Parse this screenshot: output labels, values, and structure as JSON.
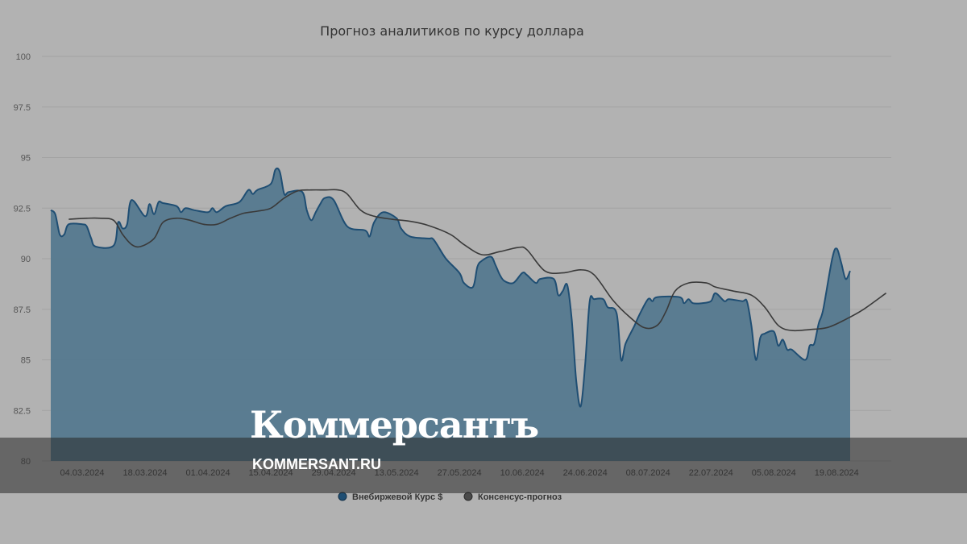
{
  "chart_data": {
    "type": "area",
    "title": "Прогноз аналитиков по курсу доллара",
    "ylim": [
      80,
      100
    ],
    "yticks": [
      "100",
      "97.5",
      "95",
      "92.5",
      "90",
      "87.5",
      "85",
      "82.5",
      "80"
    ],
    "xticks": [
      "04.03.2024",
      "18.03.2024",
      "01.04.2024",
      "15.04.2024",
      "29.04.2024",
      "13.05.2024",
      "27.05.2024",
      "10.06.2024",
      "24.06.2024",
      "08.07.2024",
      "22.07.2024",
      "05.08.2024",
      "19.08.2024"
    ],
    "xrange": [
      "2024-02-26",
      "2024-08-22"
    ],
    "grid": "horizontal",
    "legend_position": "bottom-center",
    "series": [
      {
        "name": "Внебиржевой Курс $",
        "type": "area",
        "color": "#1f4e73",
        "points": [
          [
            "2024-02-26",
            92.4
          ],
          [
            "2024-02-27",
            92.2
          ],
          [
            "2024-02-28",
            91.2
          ],
          [
            "2024-02-29",
            91.2
          ],
          [
            "2024-03-01",
            91.7
          ],
          [
            "2024-03-04",
            91.7
          ],
          [
            "2024-03-05",
            91.6
          ],
          [
            "2024-03-06",
            91.0
          ],
          [
            "2024-03-07",
            90.6
          ],
          [
            "2024-03-11",
            90.65
          ],
          [
            "2024-03-12",
            91.8
          ],
          [
            "2024-03-13",
            91.5
          ],
          [
            "2024-03-14",
            91.7
          ],
          [
            "2024-03-15",
            92.9
          ],
          [
            "2024-03-18",
            92.1
          ],
          [
            "2024-03-19",
            92.7
          ],
          [
            "2024-03-20",
            92.2
          ],
          [
            "2024-03-21",
            92.8
          ],
          [
            "2024-03-22",
            92.75
          ],
          [
            "2024-03-25",
            92.6
          ],
          [
            "2024-03-26",
            92.3
          ],
          [
            "2024-03-27",
            92.5
          ],
          [
            "2024-03-29",
            92.4
          ],
          [
            "2024-04-01",
            92.3
          ],
          [
            "2024-04-02",
            92.5
          ],
          [
            "2024-04-03",
            92.3
          ],
          [
            "2024-04-05",
            92.6
          ],
          [
            "2024-04-08",
            92.8
          ],
          [
            "2024-04-10",
            93.4
          ],
          [
            "2024-04-11",
            93.2
          ],
          [
            "2024-04-12",
            93.4
          ],
          [
            "2024-04-15",
            93.7
          ],
          [
            "2024-04-16",
            94.4
          ],
          [
            "2024-04-17",
            94.3
          ],
          [
            "2024-04-18",
            93.2
          ],
          [
            "2024-04-19",
            93.3
          ],
          [
            "2024-04-22",
            93.3
          ],
          [
            "2024-04-23",
            92.4
          ],
          [
            "2024-04-24",
            91.9
          ],
          [
            "2024-04-25",
            92.3
          ],
          [
            "2024-04-26",
            92.7
          ],
          [
            "2024-04-27",
            93.0
          ],
          [
            "2024-04-29",
            92.9
          ],
          [
            "2024-05-02",
            91.6
          ],
          [
            "2024-05-06",
            91.4
          ],
          [
            "2024-05-07",
            91.1
          ],
          [
            "2024-05-08",
            91.8
          ],
          [
            "2024-05-10",
            92.3
          ],
          [
            "2024-05-13",
            92.0
          ],
          [
            "2024-05-14",
            91.5
          ],
          [
            "2024-05-16",
            91.1
          ],
          [
            "2024-05-20",
            91.0
          ],
          [
            "2024-05-21",
            91.0
          ],
          [
            "2024-05-22",
            90.7
          ],
          [
            "2024-05-24",
            90.0
          ],
          [
            "2024-05-27",
            89.3
          ],
          [
            "2024-05-28",
            88.8
          ],
          [
            "2024-05-30",
            88.6
          ],
          [
            "2024-05-31",
            89.6
          ],
          [
            "2024-06-01",
            89.9
          ],
          [
            "2024-06-03",
            90.1
          ],
          [
            "2024-06-04",
            89.7
          ],
          [
            "2024-06-05",
            89.2
          ],
          [
            "2024-06-06",
            88.9
          ],
          [
            "2024-06-08",
            88.8
          ],
          [
            "2024-06-10",
            89.3
          ],
          [
            "2024-06-11",
            89.2
          ],
          [
            "2024-06-13",
            88.8
          ],
          [
            "2024-06-14",
            89.0
          ],
          [
            "2024-06-17",
            89.0
          ],
          [
            "2024-06-18",
            88.2
          ],
          [
            "2024-06-19",
            88.4
          ],
          [
            "2024-06-20",
            88.7
          ],
          [
            "2024-06-21",
            87.0
          ],
          [
            "2024-06-22",
            84.0
          ],
          [
            "2024-06-23",
            82.7
          ],
          [
            "2024-06-24",
            84.8
          ],
          [
            "2024-06-25",
            87.9
          ],
          [
            "2024-06-26",
            88.0
          ],
          [
            "2024-06-28",
            88.0
          ],
          [
            "2024-06-29",
            87.6
          ],
          [
            "2024-07-01",
            87.3
          ],
          [
            "2024-07-02",
            85.0
          ],
          [
            "2024-07-03",
            85.8
          ],
          [
            "2024-07-05",
            86.7
          ],
          [
            "2024-07-06",
            87.2
          ],
          [
            "2024-07-08",
            88.0
          ],
          [
            "2024-07-09",
            87.9
          ],
          [
            "2024-07-10",
            88.1
          ],
          [
            "2024-07-15",
            88.1
          ],
          [
            "2024-07-16",
            87.8
          ],
          [
            "2024-07-17",
            88.0
          ],
          [
            "2024-07-18",
            87.8
          ],
          [
            "2024-07-20",
            87.8
          ],
          [
            "2024-07-22",
            87.9
          ],
          [
            "2024-07-23",
            88.3
          ],
          [
            "2024-07-25",
            87.9
          ],
          [
            "2024-07-26",
            88.0
          ],
          [
            "2024-07-29",
            87.9
          ],
          [
            "2024-07-30",
            87.9
          ],
          [
            "2024-07-31",
            86.7
          ],
          [
            "2024-08-01",
            85.0
          ],
          [
            "2024-08-02",
            86.1
          ],
          [
            "2024-08-03",
            86.3
          ],
          [
            "2024-08-05",
            86.4
          ],
          [
            "2024-08-06",
            85.7
          ],
          [
            "2024-08-07",
            86.0
          ],
          [
            "2024-08-08",
            85.5
          ],
          [
            "2024-08-09",
            85.5
          ],
          [
            "2024-08-12",
            85.0
          ],
          [
            "2024-08-13",
            85.7
          ],
          [
            "2024-08-14",
            85.8
          ],
          [
            "2024-08-15",
            86.8
          ],
          [
            "2024-08-16",
            87.5
          ],
          [
            "2024-08-18",
            90.0
          ],
          [
            "2024-08-19",
            90.5
          ],
          [
            "2024-08-20",
            89.8
          ],
          [
            "2024-08-21",
            89.0
          ],
          [
            "2024-08-22",
            89.4
          ]
        ]
      },
      {
        "name": "Консенсус-прогноз",
        "type": "line",
        "color": "#3a3a3a",
        "points": [
          [
            "2024-03-01",
            91.95
          ],
          [
            "2024-03-05",
            92.0
          ],
          [
            "2024-03-08",
            92.0
          ],
          [
            "2024-03-11",
            91.9
          ],
          [
            "2024-03-13",
            91.2
          ],
          [
            "2024-03-15",
            90.7
          ],
          [
            "2024-03-17",
            90.6
          ],
          [
            "2024-03-20",
            91.0
          ],
          [
            "2024-03-22",
            91.8
          ],
          [
            "2024-03-25",
            92.0
          ],
          [
            "2024-03-28",
            91.9
          ],
          [
            "2024-03-31",
            91.7
          ],
          [
            "2024-04-03",
            91.7
          ],
          [
            "2024-04-06",
            92.0
          ],
          [
            "2024-04-09",
            92.25
          ],
          [
            "2024-04-12",
            92.35
          ],
          [
            "2024-04-15",
            92.5
          ],
          [
            "2024-04-18",
            93.0
          ],
          [
            "2024-04-21",
            93.35
          ],
          [
            "2024-04-24",
            93.4
          ],
          [
            "2024-04-27",
            93.4
          ],
          [
            "2024-04-30",
            93.4
          ],
          [
            "2024-05-02",
            93.2
          ],
          [
            "2024-05-05",
            92.4
          ],
          [
            "2024-05-08",
            92.1
          ],
          [
            "2024-05-12",
            91.95
          ],
          [
            "2024-05-16",
            91.85
          ],
          [
            "2024-05-20",
            91.65
          ],
          [
            "2024-05-25",
            91.2
          ],
          [
            "2024-05-28",
            90.7
          ],
          [
            "2024-06-01",
            90.2
          ],
          [
            "2024-06-05",
            90.35
          ],
          [
            "2024-06-09",
            90.55
          ],
          [
            "2024-06-11",
            90.45
          ],
          [
            "2024-06-15",
            89.4
          ],
          [
            "2024-06-19",
            89.3
          ],
          [
            "2024-06-23",
            89.45
          ],
          [
            "2024-06-26",
            89.2
          ],
          [
            "2024-06-30",
            88.0
          ],
          [
            "2024-07-03",
            87.3
          ],
          [
            "2024-07-07",
            86.6
          ],
          [
            "2024-07-10",
            86.7
          ],
          [
            "2024-07-12",
            87.4
          ],
          [
            "2024-07-14",
            88.4
          ],
          [
            "2024-07-17",
            88.8
          ],
          [
            "2024-07-21",
            88.8
          ],
          [
            "2024-07-23",
            88.6
          ],
          [
            "2024-07-27",
            88.4
          ],
          [
            "2024-07-31",
            88.2
          ],
          [
            "2024-08-03",
            87.6
          ],
          [
            "2024-08-06",
            86.7
          ],
          [
            "2024-08-09",
            86.45
          ],
          [
            "2024-08-13",
            86.5
          ],
          [
            "2024-08-17",
            86.6
          ],
          [
            "2024-08-21",
            87.0
          ],
          [
            "2024-08-25",
            87.5
          ],
          [
            "2024-08-30",
            88.3
          ]
        ]
      }
    ]
  },
  "legend": {
    "item1": "Внебиржевой Курс $",
    "item2": "Консенсус-прогноз"
  },
  "watermark": {
    "logo": "Коммерсантъ",
    "url": "KOMMERSANT.RU"
  },
  "colors": {
    "background": "#b2b2b2",
    "area_fill": "#55798f",
    "area_stroke": "#1f4e73",
    "consensus_line": "#3a3a3a",
    "grid": "#a3a3a3"
  }
}
